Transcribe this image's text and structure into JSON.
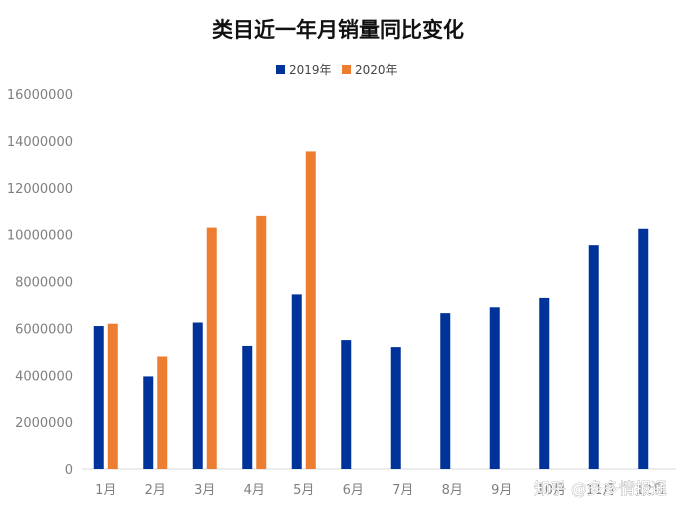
{
  "chart_data": {
    "type": "bar",
    "title": "类目近一年月销量同比变化",
    "categories": [
      "1月",
      "2月",
      "3月",
      "4月",
      "5月",
      "6月",
      "7月",
      "8月",
      "9月",
      "10月",
      "11月",
      "12月"
    ],
    "series": [
      {
        "name": "2019年",
        "color": "#003399",
        "values": [
          6100000,
          3950000,
          6250000,
          5250000,
          7450000,
          5500000,
          5200000,
          6650000,
          6900000,
          7300000,
          9550000,
          10250000
        ]
      },
      {
        "name": "2020年",
        "color": "#ED7D31",
        "values": [
          6200000,
          4800000,
          10300000,
          10800000,
          13550000,
          null,
          null,
          null,
          null,
          null,
          null,
          null
        ]
      }
    ],
    "ylim": [
      0,
      16000000
    ],
    "yticks": [
      "0",
      "2000000",
      "4000000",
      "6000000",
      "8000000",
      "10000000",
      "12000000",
      "14000000",
      "16000000"
    ],
    "grid": false,
    "legend": "top-center",
    "xlabel": "",
    "ylabel": ""
  },
  "watermark": "知乎 @多多情报通"
}
